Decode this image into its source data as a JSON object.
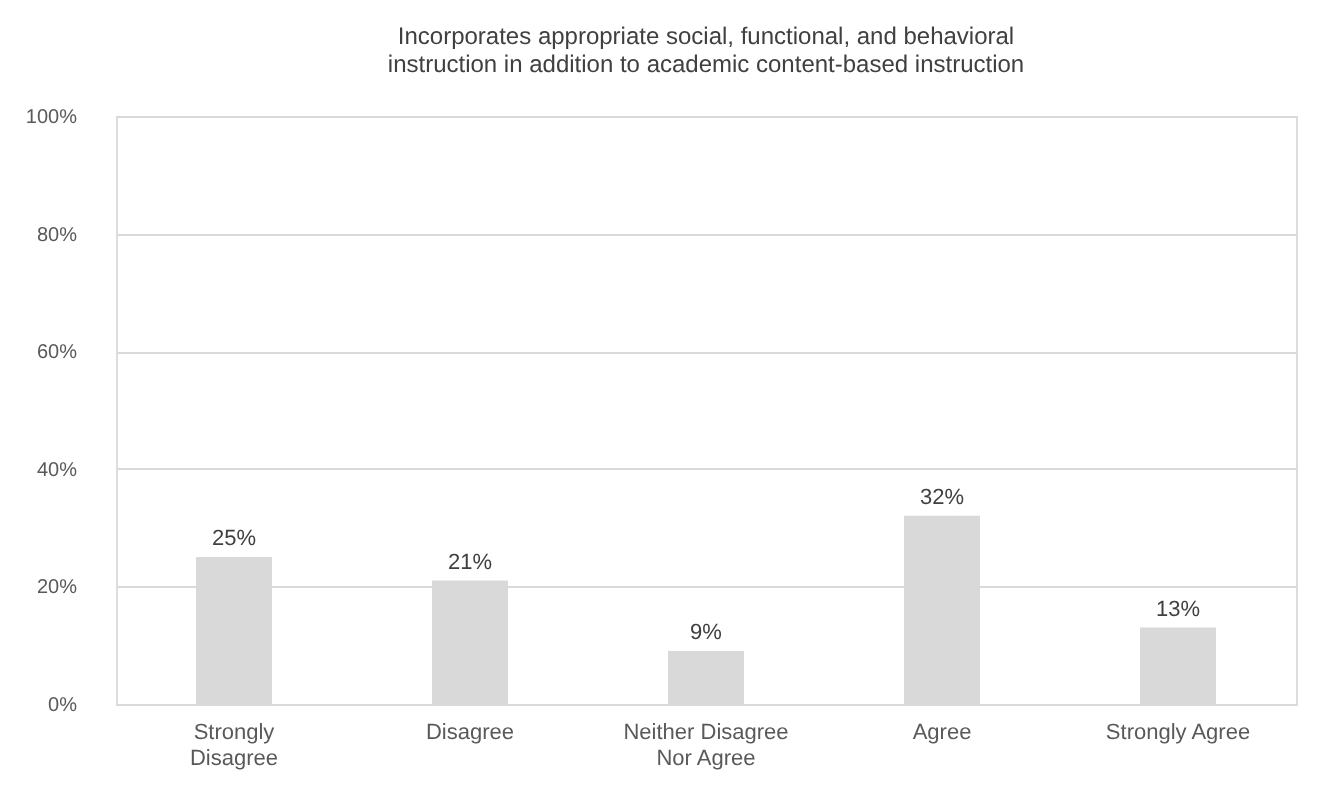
{
  "chart_data": {
    "type": "bar",
    "title": "Incorporates appropriate social, functional, and behavioral instruction in addition to academic content-based instruction",
    "categories": [
      "Strongly Disagree",
      "Disagree",
      "Neither Disagree Nor Agree",
      "Agree",
      "Strongly Agree"
    ],
    "values": [
      25,
      21,
      9,
      32,
      13
    ],
    "value_labels": [
      "25%",
      "21%",
      "9%",
      "32%",
      "13%"
    ],
    "color": "#d9d9d9",
    "ylim": [
      0,
      100
    ],
    "yticks": [
      {
        "value": 0,
        "label": "0%"
      },
      {
        "value": 20,
        "label": "20%"
      },
      {
        "value": 40,
        "label": "40%"
      },
      {
        "value": 60,
        "label": "60%"
      },
      {
        "value": 80,
        "label": "80%"
      },
      {
        "value": 100,
        "label": "100%"
      }
    ],
    "grid": "y"
  }
}
